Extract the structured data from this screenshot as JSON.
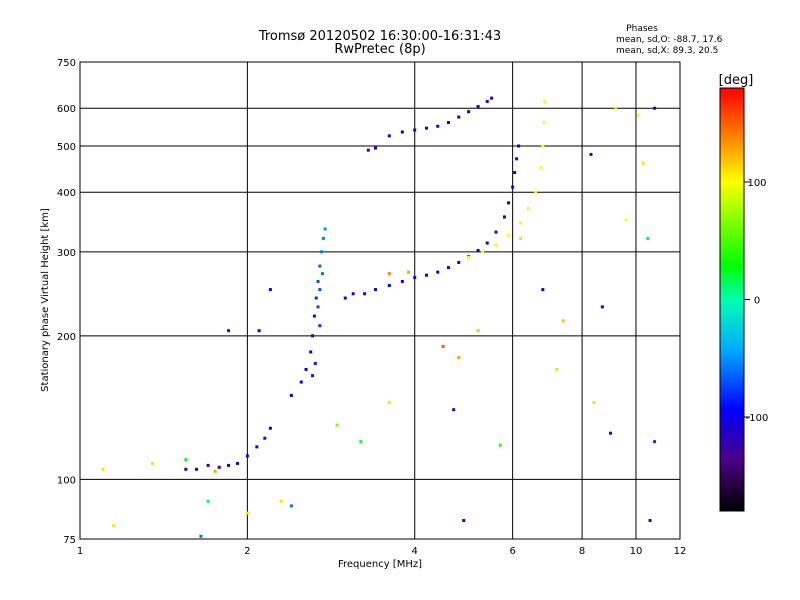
{
  "chart_data": {
    "type": "scatter",
    "title": "Tromsø 20120502 16:30:00-16:31:43",
    "subtitle": "RwPretec (8p)",
    "xlabel": "Frequency [MHz]",
    "ylabel": "Stationary phase Virtual Height [km]",
    "x_scale": "log",
    "y_scale": "log",
    "xlim": [
      1,
      12
    ],
    "ylim": [
      75,
      750
    ],
    "x_ticks": [
      1,
      2,
      4,
      6,
      8,
      10,
      12
    ],
    "y_ticks": [
      75,
      100,
      200,
      300,
      400,
      500,
      600,
      750
    ],
    "grid": true,
    "phases": {
      "title": "Phases",
      "line1": "mean, sd,O: -88.7, 17.6",
      "line2": "mean, sd,X: 89.3, 20.5"
    },
    "colorbar": {
      "label": "[deg]",
      "range": [
        -180,
        180
      ],
      "ticks": [
        100,
        0,
        -100
      ],
      "tick_labels": [
        "100",
        "0",
        "-100"
      ]
    },
    "series": [
      {
        "points": [
          [
            1.55,
            105,
            -110
          ],
          [
            1.62,
            105,
            -112
          ],
          [
            1.7,
            107,
            -108
          ],
          [
            1.78,
            106,
            -105
          ],
          [
            1.85,
            107,
            -100
          ],
          [
            1.92,
            108,
            -110
          ],
          [
            2.0,
            112,
            -100
          ],
          [
            2.08,
            117,
            -105
          ],
          [
            2.15,
            122,
            -100
          ],
          [
            2.2,
            128,
            -110
          ],
          [
            2.4,
            150,
            -100
          ],
          [
            2.5,
            160,
            -100
          ],
          [
            2.55,
            170,
            -100
          ],
          [
            2.6,
            185,
            -100
          ],
          [
            2.62,
            200,
            -95
          ],
          [
            2.64,
            220,
            -90
          ],
          [
            2.66,
            240,
            -80
          ],
          [
            2.68,
            260,
            -70
          ],
          [
            2.7,
            280,
            -65
          ],
          [
            2.72,
            300,
            -60
          ],
          [
            2.74,
            320,
            -55
          ],
          [
            2.76,
            335,
            -50
          ],
          [
            2.68,
            230,
            -75
          ],
          [
            2.7,
            250,
            -70
          ],
          [
            2.73,
            270,
            -60
          ],
          [
            2.62,
            165,
            -90
          ],
          [
            2.65,
            175,
            -85
          ],
          [
            2.7,
            210,
            -80
          ],
          [
            3.0,
            240,
            -110
          ],
          [
            3.1,
            245,
            -110
          ],
          [
            3.25,
            245,
            -108
          ],
          [
            3.4,
            250,
            -105
          ],
          [
            3.6,
            255,
            -100
          ],
          [
            3.8,
            260,
            -98
          ],
          [
            4.0,
            265,
            -95
          ],
          [
            4.2,
            268,
            -95
          ],
          [
            4.4,
            272,
            -95
          ],
          [
            4.6,
            278,
            -95
          ],
          [
            4.8,
            285,
            -95
          ],
          [
            5.0,
            293,
            -95
          ],
          [
            5.2,
            302,
            -95
          ],
          [
            5.4,
            313,
            -97
          ],
          [
            5.6,
            330,
            -100
          ],
          [
            5.8,
            355,
            -100
          ],
          [
            5.9,
            380,
            -100
          ],
          [
            6.0,
            410,
            -100
          ],
          [
            6.05,
            440,
            -100
          ],
          [
            6.1,
            470,
            -100
          ],
          [
            6.15,
            500,
            -100
          ],
          [
            3.3,
            490,
            -110
          ],
          [
            3.4,
            495,
            -110
          ],
          [
            3.6,
            525,
            -100
          ],
          [
            3.8,
            535,
            -100
          ],
          [
            4.0,
            540,
            -105
          ],
          [
            4.2,
            545,
            -100
          ],
          [
            4.4,
            550,
            -100
          ],
          [
            4.6,
            560,
            -100
          ],
          [
            4.8,
            575,
            -100
          ],
          [
            5.0,
            590,
            -95
          ],
          [
            5.2,
            605,
            -100
          ],
          [
            5.4,
            620,
            -100
          ],
          [
            5.5,
            630,
            -100
          ],
          [
            5.0,
            292,
            100
          ],
          [
            5.3,
            300,
            100
          ],
          [
            5.6,
            310,
            105
          ],
          [
            5.9,
            325,
            100
          ],
          [
            6.2,
            345,
            100
          ],
          [
            6.4,
            370,
            100
          ],
          [
            6.6,
            400,
            100
          ],
          [
            6.75,
            450,
            100
          ],
          [
            6.8,
            500,
            100
          ],
          [
            6.83,
            560,
            100
          ],
          [
            6.85,
            620,
            100
          ],
          [
            3.6,
            270,
            140
          ],
          [
            3.9,
            272,
            130
          ],
          [
            1.1,
            105,
            110
          ],
          [
            1.35,
            108,
            110
          ],
          [
            1.75,
            104,
            130
          ],
          [
            1.55,
            110,
            20
          ],
          [
            1.85,
            205,
            -90
          ],
          [
            2.2,
            250,
            -100
          ],
          [
            2.1,
            205,
            -100
          ],
          [
            9.2,
            600,
            110
          ],
          [
            10.1,
            580,
            100
          ],
          [
            10.8,
            600,
            -100
          ],
          [
            10.3,
            460,
            110
          ],
          [
            8.3,
            480,
            -90
          ],
          [
            9.6,
            350,
            100
          ],
          [
            10.5,
            320,
            20
          ],
          [
            8.7,
            230,
            -100
          ],
          [
            4.5,
            190,
            150
          ],
          [
            4.8,
            180,
            130
          ],
          [
            5.2,
            205,
            120
          ],
          [
            7.2,
            170,
            110
          ],
          [
            8.4,
            145,
            110
          ],
          [
            3.6,
            145,
            110
          ],
          [
            4.7,
            140,
            -110
          ],
          [
            2.9,
            130,
            60
          ],
          [
            3.2,
            120,
            20
          ],
          [
            5.7,
            118,
            40
          ],
          [
            2.3,
            90,
            110
          ],
          [
            2.4,
            88,
            -60
          ],
          [
            1.7,
            90,
            20
          ],
          [
            2.0,
            85,
            110
          ],
          [
            1.15,
            80,
            110
          ],
          [
            1.65,
            76,
            -60
          ],
          [
            4.9,
            82,
            -100
          ],
          [
            10.6,
            82,
            -120
          ],
          [
            9.0,
            125,
            -110
          ],
          [
            10.8,
            120,
            -80
          ],
          [
            6.8,
            250,
            -100
          ],
          [
            7.4,
            215,
            120
          ],
          [
            6.2,
            320,
            110
          ]
        ]
      }
    ]
  }
}
